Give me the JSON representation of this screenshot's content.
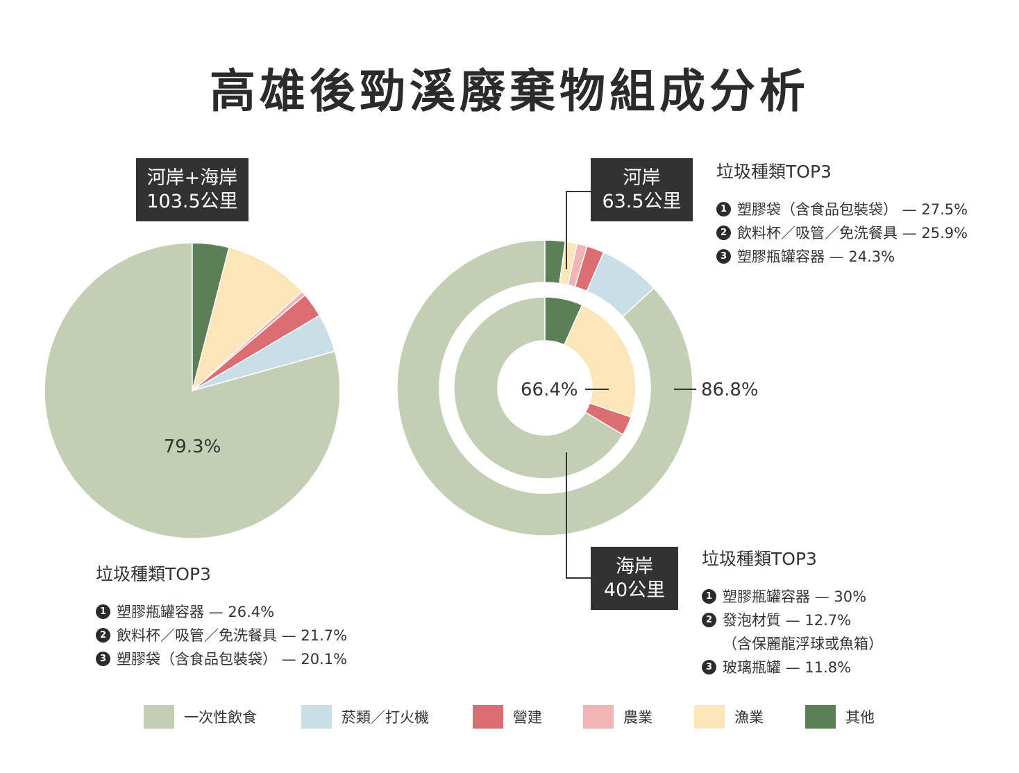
{
  "title": "高雄後勁溪廢棄物組成分析",
  "colors": {
    "一次性飲食": "#c2cfb2",
    "菸類/打火機": "#c9dee6",
    "營建": "#dc6d70",
    "農業": "#f3b4b6",
    "漁業": "#fbe6b9",
    "其他": "#5d7f58"
  },
  "left_chart": {
    "box_line1": "河岸+海岸",
    "box_line2": "103.5公里",
    "center_label": "79.3%",
    "top3_heading": "垃圾種類TOP3",
    "top3": [
      {
        "num": "1",
        "text": "塑膠瓶罐容器 — 26.4%"
      },
      {
        "num": "2",
        "text": "飲料杯／吸管／免洗餐具 — 21.7%"
      },
      {
        "num": "3",
        "text": "塑膠袋（含食品包裝袋） — 20.1%"
      }
    ]
  },
  "right_chart": {
    "river_box_line1": "河岸",
    "river_box_line2": "63.5公里",
    "coast_box_line1": "海岸",
    "coast_box_line2": "40公里",
    "outer_label": "86.8%",
    "inner_label": "66.4%",
    "river_top3_heading": "垃圾種類TOP3",
    "river_top3": [
      {
        "num": "1",
        "text": "塑膠袋（含食品包裝袋） — 27.5%"
      },
      {
        "num": "2",
        "text": "飲料杯／吸管／免洗餐具 — 25.9%"
      },
      {
        "num": "3",
        "text": "塑膠瓶罐容器 — 24.3%"
      }
    ],
    "coast_top3_heading": "垃圾種類TOP3",
    "coast_top3": [
      {
        "num": "1",
        "text": "塑膠瓶罐容器 — 30%"
      },
      {
        "num": "2",
        "text": "發泡材質 — 12.7%",
        "sub": "（含保麗龍浮球或魚箱）"
      },
      {
        "num": "3",
        "text": "玻璃瓶罐 — 11.8%"
      }
    ]
  },
  "legend": [
    {
      "label": "一次性飲食",
      "color": "#c2cfb2"
    },
    {
      "label": "菸類／打火機",
      "color": "#c9dee6"
    },
    {
      "label": "營建",
      "color": "#dc6d70"
    },
    {
      "label": "農業",
      "color": "#f3b4b6"
    },
    {
      "label": "漁業",
      "color": "#fbe6b9"
    },
    {
      "label": "其他",
      "color": "#5d7f58"
    }
  ],
  "chart_data": [
    {
      "type": "pie",
      "name": "河岸+海岸 103.5公里",
      "categories": [
        "一次性飲食",
        "菸類／打火機",
        "營建",
        "農業",
        "漁業",
        "其他"
      ],
      "values": [
        79.3,
        4.2,
        2.7,
        0.5,
        9.3,
        4.0
      ],
      "labeled_value": 79.3
    },
    {
      "type": "pie",
      "name": "河岸 63.5公里 (outer ring)",
      "categories": [
        "一次性飲食",
        "菸類／打火機",
        "營建",
        "農業",
        "漁業",
        "其他"
      ],
      "values": [
        86.8,
        6.7,
        1.9,
        1.1,
        1.3,
        2.2
      ],
      "labeled_value": 86.8
    },
    {
      "type": "pie",
      "name": "海岸 40公里 (inner ring)",
      "categories": [
        "一次性飲食",
        "菸類／打火機",
        "營建",
        "農業",
        "漁業",
        "其他"
      ],
      "values": [
        66.4,
        0,
        3.4,
        0,
        23.5,
        6.7
      ],
      "labeled_value": 66.4
    }
  ]
}
